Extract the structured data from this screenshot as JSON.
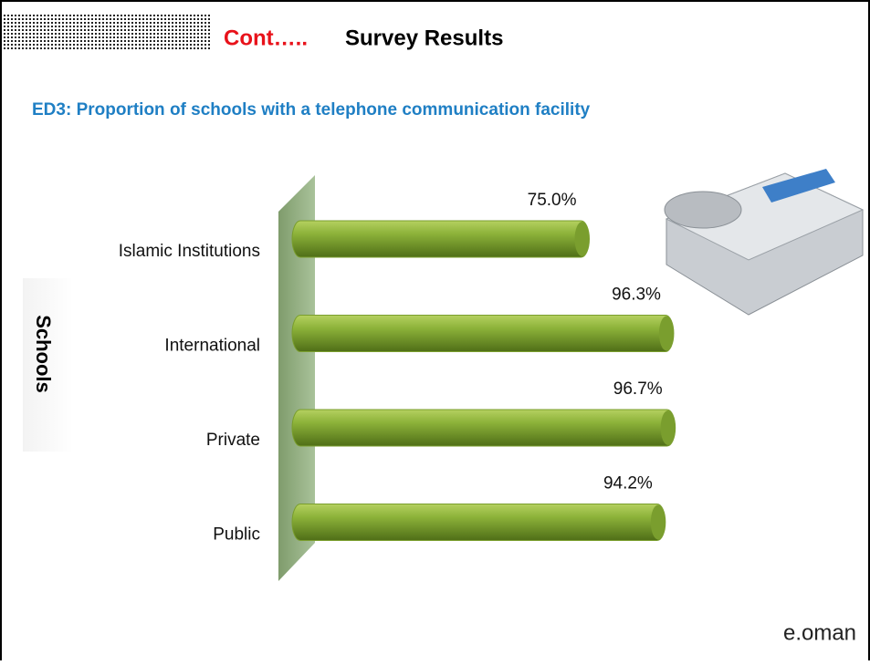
{
  "chart_data": {
    "type": "bar",
    "orientation": "horizontal",
    "title_prefix": "Cont…..",
    "title": "Survey Results",
    "subtitle": "ED3: Proportion of schools with a telephone communication facility",
    "y_label": "Schools",
    "categories": [
      "Islamic Institutions",
      "International",
      "Private",
      "Public"
    ],
    "values": [
      75.0,
      96.3,
      96.7,
      94.2
    ],
    "value_labels": [
      "75.0%",
      "96.3%",
      "96.7%",
      "94.2%"
    ],
    "color": "#7a9e2e"
  },
  "logo": "e.oman"
}
